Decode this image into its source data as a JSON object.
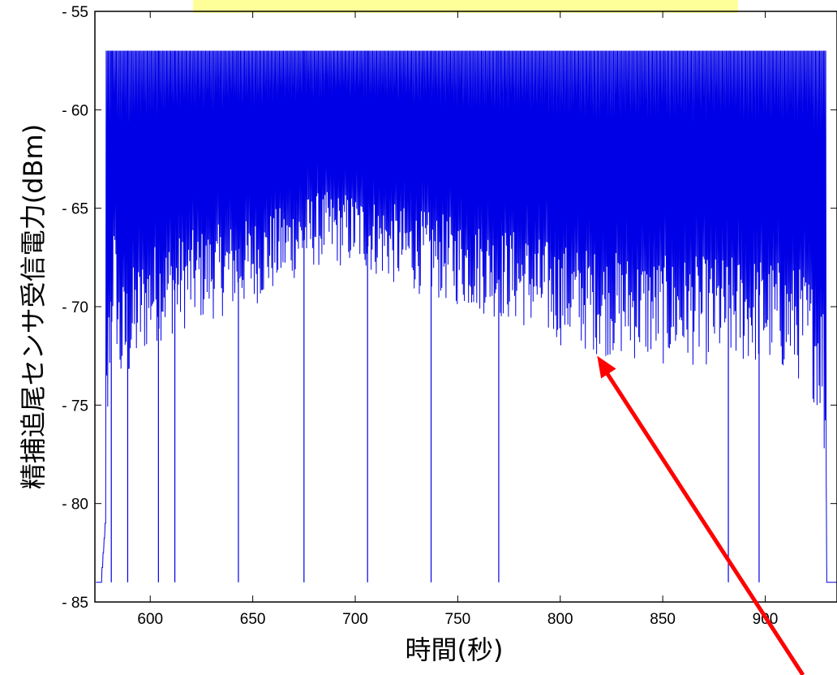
{
  "chart_data": {
    "type": "line",
    "title": "",
    "xlabel": "時間(秒)",
    "ylabel": "精捕追尾センサ受信電力(dBm)",
    "xlim": [
      573,
      935
    ],
    "ylim": [
      -85,
      -55
    ],
    "xticks": [
      600,
      650,
      700,
      750,
      800,
      850,
      900
    ],
    "yticks": [
      -55,
      -60,
      -65,
      -70,
      -75,
      -80,
      -85
    ],
    "grid": false,
    "legend": "none",
    "series": [
      {
        "color": "#0000e6",
        "description_points": {
          "upper_level_dBm": -57,
          "envelope_x": [
            573,
            576,
            578,
            580,
            582,
            585,
            590,
            600,
            620,
            650,
            680,
            700,
            720,
            750,
            780,
            800,
            820,
            850,
            880,
            900,
            920,
            928,
            930,
            935
          ],
          "envelope_lower_dBm": [
            -84,
            -84,
            -81,
            -74,
            -70,
            -75,
            -74,
            -72,
            -71,
            -70,
            -68,
            -68,
            -69,
            -70,
            -71,
            -72,
            -72.5,
            -73,
            -73,
            -73,
            -74,
            -76,
            -84,
            -84
          ],
          "dropout_x": [
            581,
            589,
            604,
            612,
            643,
            675,
            706,
            737,
            770,
            882,
            897
          ],
          "dropout_dBm": [
            -84,
            -84,
            -84,
            -84,
            -84,
            -84,
            -84,
            -84,
            -84,
            -84,
            -84
          ]
        }
      }
    ],
    "annotation": {
      "type": "arrow",
      "color": "#ff0000",
      "target_x": 818,
      "target_y": -72.5
    },
    "banner": {
      "text": "",
      "background": "#ffff99"
    }
  }
}
